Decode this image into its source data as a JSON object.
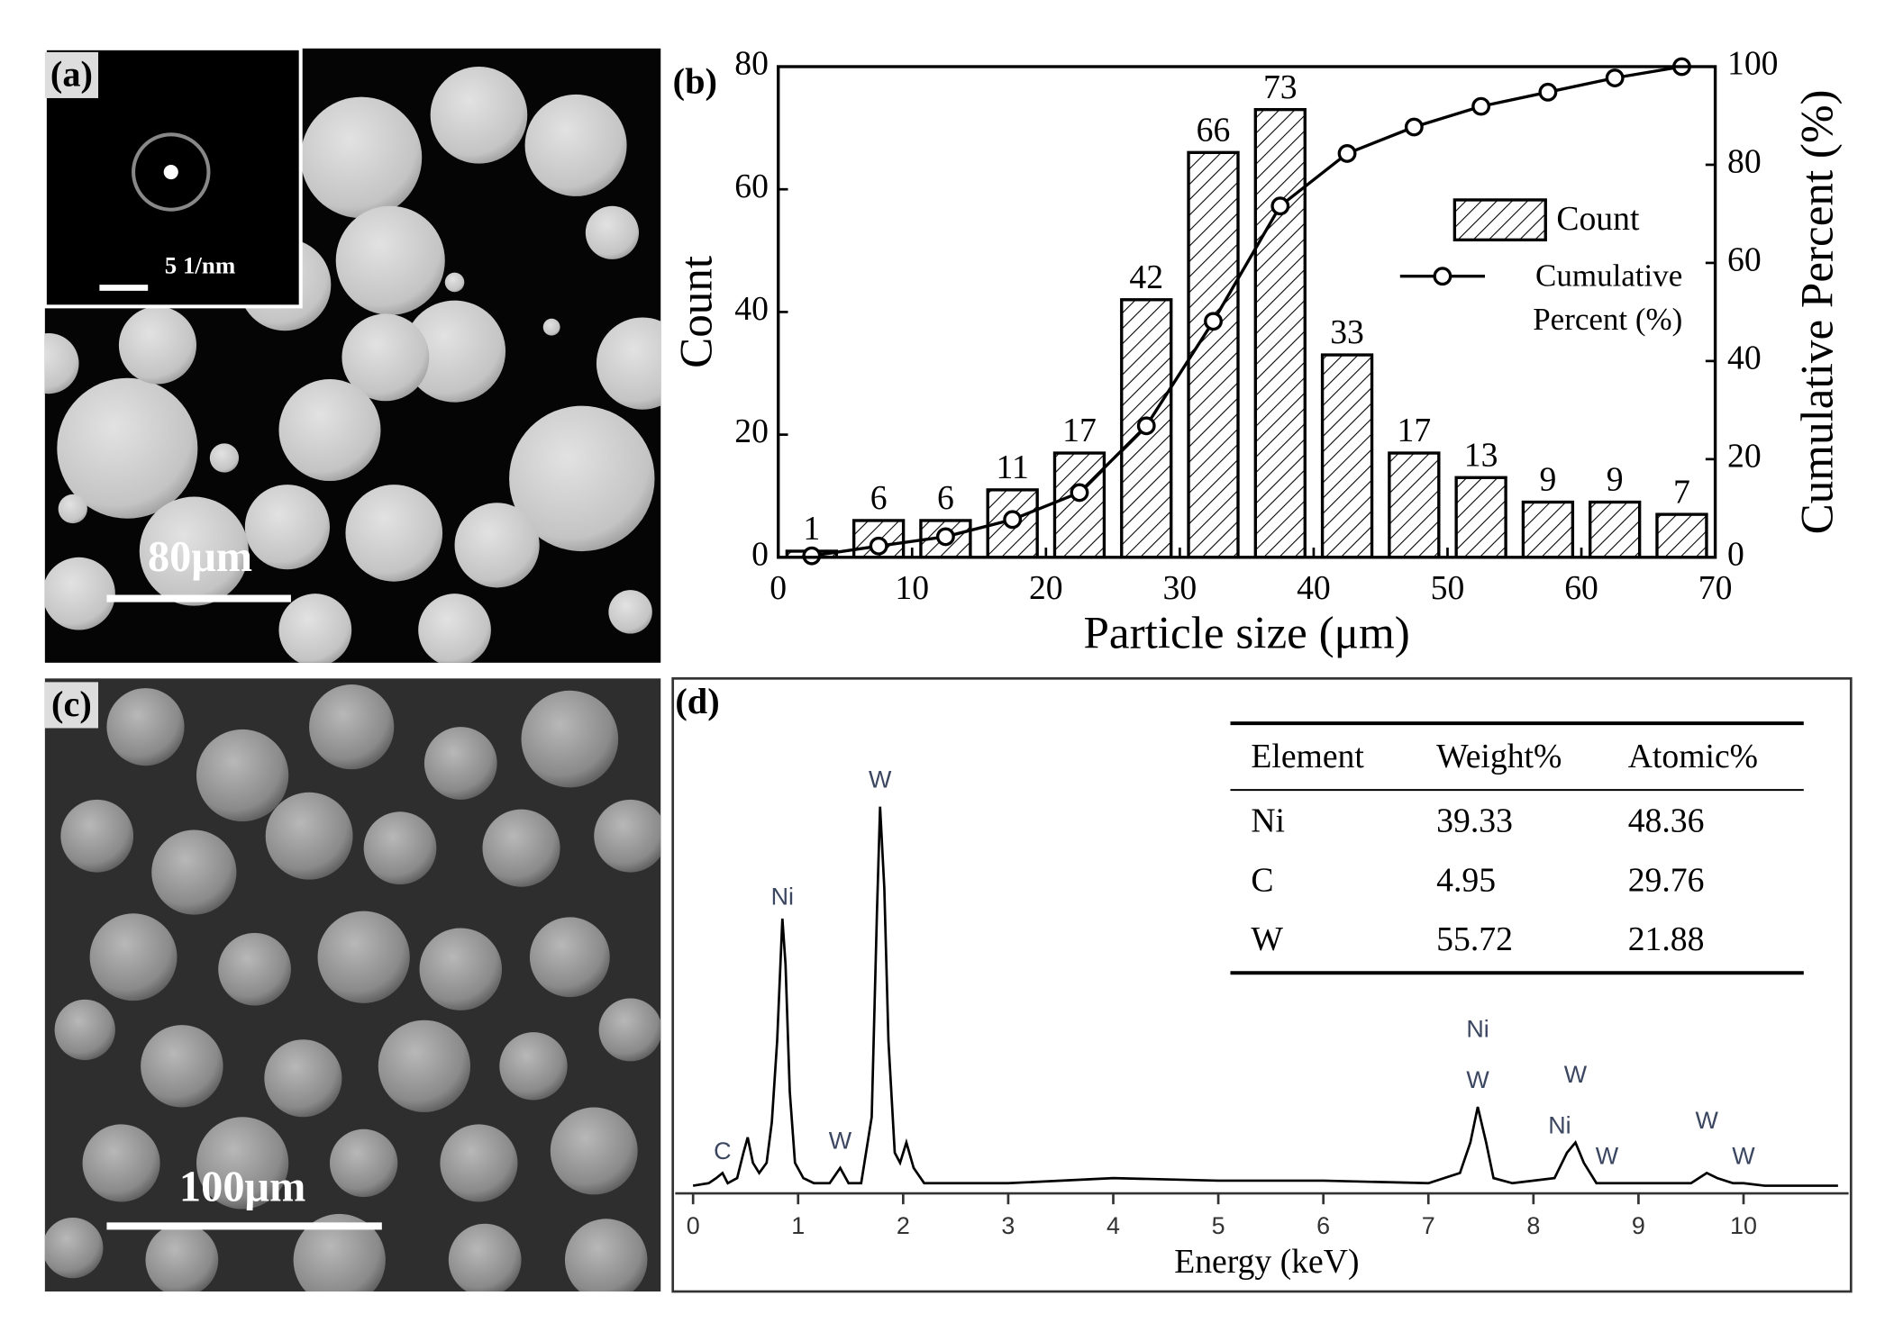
{
  "images": [
    {
      "label": "(a)",
      "inset_scale": "5 1/nm",
      "scale_bar": "80μm"
    },
    {
      "label": "(c)",
      "scale_bar": "100μm"
    }
  ],
  "chart_data": [
    {
      "type": "histogram",
      "label": "(b)",
      "xlabel": "Particle size (μm)",
      "ylabel": "Count",
      "y2label": "Cumulative Percent (%)",
      "bins": [
        0,
        5,
        10,
        15,
        20,
        25,
        30,
        35,
        40,
        45,
        50,
        55,
        60,
        65,
        70
      ],
      "series": [
        {
          "name": "Count",
          "color": "#000000",
          "values": [
            1,
            6,
            6,
            11,
            17,
            42,
            66,
            73,
            33,
            17,
            13,
            9,
            9,
            7
          ]
        },
        {
          "name": "Cumulative Percent (%)",
          "type": "line",
          "axis": "y2",
          "color": "#000000",
          "x": [
            2.5,
            7.5,
            12.5,
            17.5,
            22.5,
            27.5,
            32.5,
            37.5,
            42.5,
            47.5,
            52.5,
            57.5,
            62.5,
            67.5
          ],
          "values": [
            0.3,
            2.3,
            4.2,
            7.7,
            13.2,
            26.8,
            48.1,
            71.6,
            82.3,
            87.7,
            91.9,
            94.8,
            97.7,
            100
          ]
        }
      ],
      "xlim": [
        0,
        70
      ],
      "xticks": [
        0,
        10,
        20,
        30,
        40,
        50,
        60,
        70
      ],
      "ylim": [
        0,
        80
      ],
      "yticks": [
        0,
        20,
        40,
        60,
        80
      ],
      "y2lim": [
        0,
        100
      ],
      "y2ticks": [
        0,
        20,
        40,
        60,
        80,
        100
      ]
    },
    {
      "type": "line",
      "label": "(d)",
      "xlabel": "Energy (keV)",
      "color": "#000000",
      "x": [
        0.0,
        0.15,
        0.22,
        0.28,
        0.33,
        0.42,
        0.48,
        0.52,
        0.57,
        0.63,
        0.7,
        0.75,
        0.8,
        0.85,
        0.88,
        0.92,
        0.97,
        1.05,
        1.15,
        1.3,
        1.4,
        1.48,
        1.6,
        1.7,
        1.75,
        1.78,
        1.82,
        1.86,
        1.92,
        1.97,
        2.03,
        2.1,
        2.2,
        3.0,
        4.0,
        5.0,
        6.0,
        7.0,
        7.3,
        7.4,
        7.47,
        7.55,
        7.62,
        7.8,
        8.2,
        8.32,
        8.4,
        8.48,
        8.6,
        8.8,
        9.5,
        9.65,
        9.75,
        9.9,
        10.0,
        10.2,
        10.5,
        10.9
      ],
      "values": [
        1.5,
        2,
        3,
        4,
        2,
        3,
        8,
        11,
        6,
        4,
        6,
        14,
        30,
        54,
        45,
        20,
        6,
        3,
        2,
        2,
        5,
        2,
        2,
        15,
        55,
        76,
        60,
        30,
        8,
        6,
        10,
        5,
        2,
        2,
        3,
        2.5,
        2.5,
        2,
        4,
        10,
        17,
        10,
        3,
        2,
        3,
        8,
        10,
        6,
        2,
        2,
        2,
        4,
        3,
        2,
        2,
        1.5,
        1.5,
        1.5
      ],
      "xlim": [
        -0.17,
        11
      ],
      "xticks": [
        0,
        1,
        2,
        3,
        4,
        5,
        6,
        7,
        8,
        9,
        10
      ],
      "ylim": [
        0,
        100
      ],
      "annotations": [
        {
          "text": "C",
          "x": 0.28,
          "y": 8
        },
        {
          "text": "Ni",
          "x": 0.85,
          "y": 58
        },
        {
          "text": "W",
          "x": 1.4,
          "y": 10
        },
        {
          "text": "W",
          "x": 1.78,
          "y": 81
        },
        {
          "text": "Ni",
          "x": 7.47,
          "y": 32
        },
        {
          "text": "W",
          "x": 7.47,
          "y": 22
        },
        {
          "text": "W",
          "x": 8.4,
          "y": 23
        },
        {
          "text": "Ni",
          "x": 8.25,
          "y": 13
        },
        {
          "text": "W",
          "x": 8.7,
          "y": 7
        },
        {
          "text": "W",
          "x": 9.65,
          "y": 14
        },
        {
          "text": "W",
          "x": 10.0,
          "y": 7
        }
      ]
    }
  ],
  "table": {
    "headers": [
      "Element",
      "Weight%",
      "Atomic%"
    ],
    "rows": [
      [
        "Ni",
        39.33,
        48.36
      ],
      [
        "C",
        4.95,
        29.76
      ],
      [
        "W",
        55.72,
        21.88
      ]
    ]
  }
}
